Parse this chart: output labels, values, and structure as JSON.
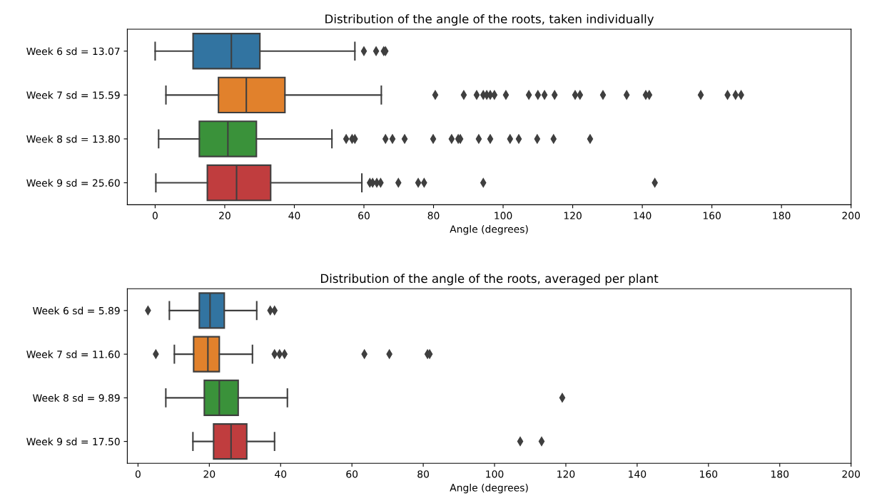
{
  "chart_data": [
    {
      "type": "box",
      "orientation": "horizontal",
      "title": "Distribution of the angle of the roots, taken individually",
      "xlabel": "Angle (degrees)",
      "categories": [
        "Week 6 sd = 13.07",
        "Week 7 sd = 15.59",
        "Week 8 sd = 13.80",
        "Week 9 sd = 25.60"
      ],
      "colors": [
        "#3274a1",
        "#e1812c",
        "#3a923a",
        "#c03d3e"
      ],
      "xlim": [
        -8,
        200
      ],
      "xticks": [
        0,
        20,
        40,
        60,
        80,
        100,
        120,
        140,
        160,
        180,
        200
      ],
      "marker": "diamond",
      "grid": false,
      "boxes": [
        {
          "low": 0,
          "q1": 10.9,
          "median": 21.9,
          "q3": 30.1,
          "high": 57.4,
          "outliers": [
            60.0,
            63.5,
            65.7,
            66.2
          ]
        },
        {
          "low": 3.1,
          "q1": 18.2,
          "median": 26.2,
          "q3": 37.3,
          "high": 65.0,
          "outliers": [
            80.5,
            88.7,
            92.4,
            94.3,
            95.3,
            96.3,
            97.5,
            100.8,
            107.4,
            110.0,
            111.9,
            114.8,
            120.7,
            122.1,
            128.7,
            135.5,
            141.0,
            142.0,
            156.8,
            164.5,
            166.8,
            168.4
          ]
        },
        {
          "low": 1.0,
          "q1": 12.7,
          "median": 20.9,
          "q3": 29.1,
          "high": 50.8,
          "outliers": [
            54.9,
            56.6,
            57.4,
            66.2,
            68.2,
            71.7,
            79.9,
            85.2,
            87.1,
            87.7,
            93.0,
            96.3,
            102.0,
            104.5,
            109.8,
            114.5,
            125.0
          ]
        },
        {
          "low": 0.2,
          "q1": 15.0,
          "median": 23.4,
          "q3": 33.2,
          "high": 59.4,
          "outliers": [
            61.7,
            62.5,
            63.7,
            64.8,
            69.9,
            75.6,
            77.3,
            94.3,
            143.6
          ]
        }
      ]
    },
    {
      "type": "box",
      "orientation": "horizontal",
      "title": "Distribution of the angle of the roots, averaged per plant",
      "xlabel": "Angle (degrees)",
      "categories": [
        "Week 6 sd = 5.89",
        "Week 7 sd = 11.60",
        "Week 8 sd = 9.89",
        "Week 9 sd = 17.50"
      ],
      "colors": [
        "#3274a1",
        "#e1812c",
        "#3a923a",
        "#c03d3e"
      ],
      "xlim": [
        -3,
        200
      ],
      "xticks": [
        0,
        20,
        40,
        60,
        80,
        100,
        120,
        140,
        160,
        180,
        200
      ],
      "marker": "diamond",
      "grid": false,
      "boxes": [
        {
          "low": 8.8,
          "q1": 17.2,
          "median": 20.2,
          "q3": 24.2,
          "high": 33.3,
          "outliers": [
            2.8,
            37.1,
            38.3
          ]
        },
        {
          "low": 10.2,
          "q1": 15.6,
          "median": 19.6,
          "q3": 22.8,
          "high": 32.1,
          "outliers": [
            5.0,
            38.3,
            39.7,
            41.1,
            63.5,
            70.5,
            81.2,
            81.8
          ]
        },
        {
          "low": 7.8,
          "q1": 18.6,
          "median": 22.8,
          "q3": 28.1,
          "high": 41.9,
          "outliers": [
            119.0
          ]
        },
        {
          "low": 15.4,
          "q1": 21.2,
          "median": 26.1,
          "q3": 30.5,
          "high": 38.3,
          "outliers": [
            107.2,
            113.2
          ]
        }
      ]
    }
  ]
}
